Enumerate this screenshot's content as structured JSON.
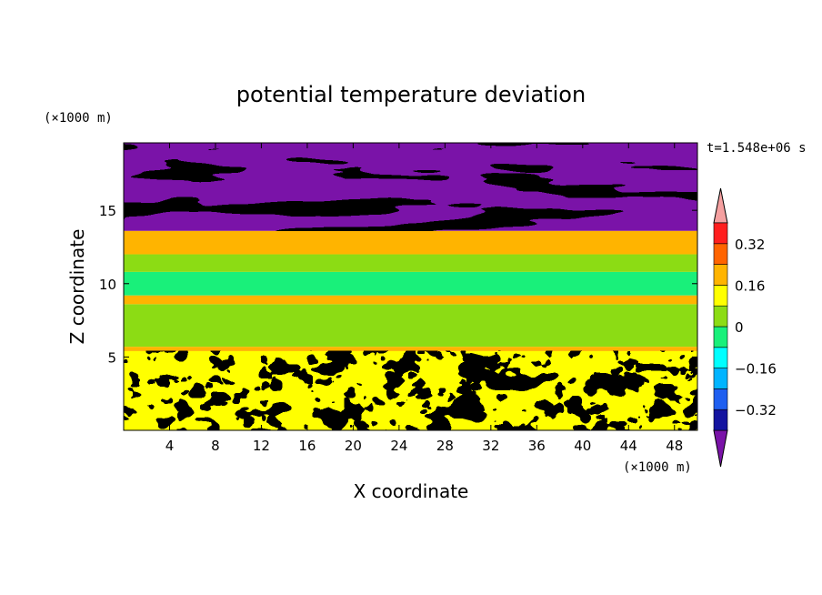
{
  "chart_data": {
    "type": "heatmap",
    "title": "potential temperature deviation",
    "xlabel": "X coordinate",
    "ylabel": "Z coordinate",
    "x_unit": "(×1000 m)",
    "y_unit": "(×1000 m)",
    "time_label": "t=1.548e+06 s",
    "xlim": [
      0,
      50
    ],
    "ylim": [
      0,
      19.6
    ],
    "x_ticks": [
      4,
      8,
      12,
      16,
      20,
      24,
      28,
      32,
      36,
      40,
      44,
      48
    ],
    "y_ticks": [
      5,
      10,
      15
    ],
    "colorbar": {
      "levels": [
        -0.4,
        -0.32,
        -0.24,
        -0.16,
        -0.08,
        0,
        0.08,
        0.16,
        0.24,
        0.32,
        0.4
      ],
      "tick_labels": [
        {
          "value": -0.32,
          "label": "−0.32"
        },
        {
          "value": -0.16,
          "label": "−0.16"
        },
        {
          "value": 0,
          "label": "0"
        },
        {
          "value": 0.16,
          "label": "0.16"
        },
        {
          "value": 0.32,
          "label": "0.32"
        }
      ],
      "colors": [
        "#7a13a8",
        "#1414a0",
        "#1e5ff0",
        "#00b4ff",
        "#00ffff",
        "#19f07a",
        "#8cdc14",
        "#ffff00",
        "#ffb400",
        "#ff6400",
        "#ff1e1e",
        "#f5a0a0"
      ],
      "extend": "both"
    },
    "layers": [
      {
        "zmin": 0,
        "zmax": 5.4,
        "pattern": "turbulent convective layer, mixed values from −0.4 to 0.4"
      },
      {
        "zmin": 5.4,
        "zmax": 5.7,
        "value": 0.16
      },
      {
        "zmin": 5.7,
        "zmax": 8.6,
        "value": 0.04
      },
      {
        "zmin": 8.6,
        "zmax": 9.2,
        "value": 0.16
      },
      {
        "zmin": 9.2,
        "zmax": 10.8,
        "value": -0.08
      },
      {
        "zmin": 10.8,
        "zmax": 12.0,
        "value": 0.0
      },
      {
        "zmin": 12.0,
        "zmax": 13.6,
        "value": 0.16
      },
      {
        "zmin": 13.6,
        "zmax": 19.6,
        "pattern": "alternating bands of 0.4 and −0.4"
      }
    ]
  }
}
